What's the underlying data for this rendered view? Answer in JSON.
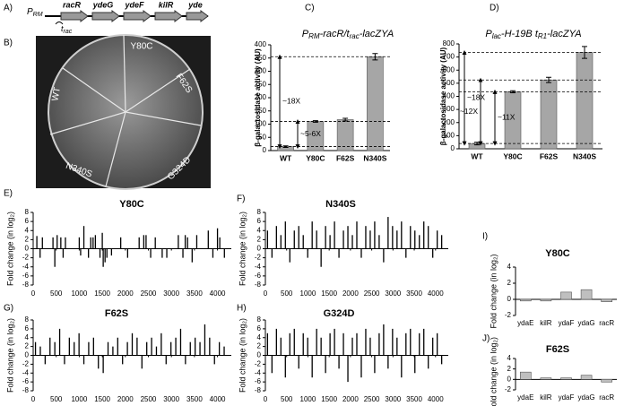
{
  "panels": {
    "a": "A)",
    "b": "B)",
    "c": "C)",
    "d": "D)",
    "e": "E)",
    "f": "F)",
    "g": "G)",
    "h": "H)",
    "i": "I)",
    "j": "J)"
  },
  "diagram": {
    "promoter": "P",
    "promoter_sub": "RM",
    "genes": [
      "racR",
      "ydeG",
      "ydeF",
      "kilR",
      "yde"
    ],
    "terminator": "t",
    "terminator_sub": "rac"
  },
  "plate": {
    "labels": [
      "Y80C",
      "F62S",
      "WT",
      "N340S",
      "G324D"
    ]
  },
  "chart_data": [
    {
      "type": "bar",
      "title": [
        "P",
        "RM",
        "-racR/t",
        "rac",
        "-lacZYA"
      ],
      "ylabel": "β-galactosidase activity (AU)",
      "categories": [
        "WT",
        "Y80C",
        "F62S",
        "N340S"
      ],
      "values": [
        15,
        110,
        117,
        355
      ],
      "errors": [
        3,
        3,
        5,
        12
      ],
      "color": "#a6a6a6",
      "ylim": [
        0,
        400
      ],
      "yticks": [
        0,
        50,
        100,
        150,
        200,
        250,
        300,
        350,
        400
      ],
      "annotations": [
        "~18X",
        "~5-6X"
      ]
    },
    {
      "type": "bar",
      "title": [
        "P",
        "lac",
        "-H-19B t",
        "R1",
        "-lacZYA"
      ],
      "ylabel": "β-galactosidase activity (AU)",
      "categories": [
        "WT",
        "Y80C",
        "F62S",
        "N340S"
      ],
      "values": [
        40,
        435,
        525,
        735
      ],
      "errors": [
        10,
        8,
        20,
        45
      ],
      "color": "#a6a6a6",
      "ylim": [
        0,
        800
      ],
      "yticks": [
        0,
        100,
        200,
        300,
        400,
        500,
        600,
        700,
        800
      ],
      "annotations": [
        "~18X",
        "~12X",
        "~11X"
      ]
    },
    {
      "type": "spike",
      "title": "Y80C",
      "ylabel": "Fold change (in log₂)",
      "x": [
        80,
        150,
        200,
        430,
        470,
        520,
        600,
        650,
        700,
        1000,
        1030,
        1100,
        1200,
        1250,
        1300,
        1350,
        1450,
        1500,
        1520,
        1560,
        1600,
        1700,
        1900,
        2050,
        2300,
        2400,
        2450,
        2550,
        2650,
        2800,
        2900,
        3150,
        3250,
        3300,
        3350,
        3450,
        3550,
        3800,
        3900,
        4000,
        4050,
        4150
      ],
      "values": [
        2.8,
        -2,
        2.5,
        2.5,
        -4,
        3,
        2.5,
        -2,
        2.5,
        2.5,
        -1.5,
        5,
        -2,
        2.5,
        2.5,
        3,
        -2,
        3.5,
        -4,
        -3,
        -2,
        -1.5,
        2.5,
        -2,
        2.5,
        3,
        3,
        -2,
        2.5,
        -2,
        -2,
        3,
        -2,
        3,
        2.5,
        -3,
        3,
        4,
        -2,
        4.5,
        2.5,
        -2
      ],
      "color": "#000000",
      "xlim": [
        0,
        4300
      ],
      "xticks": [
        0,
        500,
        1000,
        1500,
        2000,
        2500,
        3000,
        3500,
        4000
      ],
      "ylim": [
        -8,
        8
      ],
      "yticks": [
        -8,
        -6,
        -4,
        -2,
        0,
        2,
        4,
        6,
        8
      ]
    },
    {
      "type": "spike",
      "title": "N340S",
      "ylabel": "Fold change (in log₂)",
      "x": [
        50,
        155,
        260,
        365,
        470,
        575,
        680,
        785,
        890,
        995,
        1100,
        1205,
        1310,
        1415,
        1520,
        1625,
        1730,
        1835,
        1940,
        2045,
        2150,
        2255,
        2360,
        2465,
        2570,
        2675,
        2780,
        2885,
        2990,
        3095,
        3200,
        3305,
        3410,
        3515,
        3620,
        3725,
        3830,
        3935,
        4040,
        4145
      ],
      "values": [
        4,
        -2,
        5,
        3,
        6,
        -3,
        4,
        5,
        3,
        -2,
        6,
        4,
        -4,
        5,
        3,
        6,
        -2,
        4,
        5,
        3,
        6,
        -2,
        5,
        4,
        6,
        3,
        -3,
        7,
        5,
        4,
        6,
        -2,
        5,
        4,
        3,
        6,
        5,
        -2,
        4,
        3
      ],
      "color": "#000000",
      "xlim": [
        0,
        4300
      ],
      "xticks": [
        0,
        500,
        1000,
        1500,
        2000,
        2500,
        3000,
        3500,
        4000
      ],
      "ylim": [
        -8,
        8
      ],
      "yticks": [
        -8,
        -6,
        -4,
        -2,
        0,
        2,
        4,
        6,
        8
      ]
    },
    {
      "type": "spike",
      "title": "F62S",
      "ylabel": "Fold change (in log₂)",
      "x": [
        50,
        155,
        260,
        365,
        470,
        575,
        680,
        785,
        890,
        995,
        1100,
        1205,
        1310,
        1415,
        1520,
        1625,
        1730,
        1835,
        1940,
        2045,
        2150,
        2255,
        2360,
        2465,
        2570,
        2675,
        2780,
        2885,
        2990,
        3095,
        3200,
        3305,
        3410,
        3515,
        3620,
        3725,
        3830,
        3935,
        4040,
        4145
      ],
      "values": [
        3,
        2,
        -2,
        4,
        3,
        6,
        -2,
        4,
        3,
        5,
        -2,
        3,
        4,
        -3,
        -4,
        3,
        2,
        4,
        -2,
        3,
        5,
        4,
        -3,
        3,
        4,
        2,
        5,
        -2,
        3,
        4,
        6,
        -2,
        3,
        4,
        3,
        7,
        4,
        -2,
        3,
        2
      ],
      "color": "#000000",
      "xlim": [
        0,
        4300
      ],
      "xticks": [
        0,
        500,
        1000,
        1500,
        2000,
        2500,
        3000,
        3500,
        4000
      ],
      "ylim": [
        -8,
        8
      ],
      "yticks": [
        -8,
        -6,
        -4,
        -2,
        0,
        2,
        4,
        6,
        8
      ]
    },
    {
      "type": "spike",
      "title": "G324D",
      "ylabel": "Fold change (in log₂)",
      "x": [
        50,
        155,
        260,
        365,
        470,
        575,
        680,
        785,
        890,
        995,
        1100,
        1205,
        1310,
        1415,
        1520,
        1625,
        1730,
        1835,
        1940,
        2045,
        2150,
        2255,
        2360,
        2465,
        2570,
        2675,
        2780,
        2885,
        2990,
        3095,
        3200,
        3305,
        3410,
        3515,
        3620,
        3725,
        3830,
        3935,
        4040,
        4145
      ],
      "values": [
        5,
        -4,
        6,
        4,
        -5,
        5,
        6,
        -3,
        5,
        4,
        -5,
        6,
        4,
        -4,
        5,
        6,
        -3,
        5,
        -6,
        4,
        5,
        -5,
        6,
        4,
        -4,
        5,
        7,
        -3,
        6,
        4,
        -5,
        5,
        6,
        -4,
        5,
        6,
        -3,
        4,
        5,
        -2
      ],
      "color": "#000000",
      "xlim": [
        0,
        4300
      ],
      "xticks": [
        0,
        500,
        1000,
        1500,
        2000,
        2500,
        3000,
        3500,
        4000
      ],
      "ylim": [
        -8,
        8
      ],
      "yticks": [
        -8,
        -6,
        -4,
        -2,
        0,
        2,
        4,
        6,
        8
      ]
    },
    {
      "type": "bar",
      "title": "Y80C",
      "ylabel": "Fold change (in log₂)",
      "categories": [
        "ydaE",
        "kilR",
        "ydaF",
        "ydaG",
        "racR"
      ],
      "values": [
        -0.2,
        -0.2,
        0.9,
        1.2,
        -0.3
      ],
      "color": "#bfbfbf",
      "ylim": [
        -2,
        4
      ],
      "yticks": [
        -2,
        0,
        2,
        4
      ]
    },
    {
      "type": "bar",
      "title": "F62S",
      "ylabel": "Fold change (in log₂)",
      "categories": [
        "ydaE",
        "kilR",
        "ydaF",
        "ydaG",
        "racR"
      ],
      "values": [
        1.4,
        0.3,
        0.3,
        0.8,
        -0.5
      ],
      "color": "#bfbfbf",
      "ylim": [
        -2,
        4
      ],
      "yticks": [
        -2,
        0,
        2,
        4
      ]
    }
  ]
}
